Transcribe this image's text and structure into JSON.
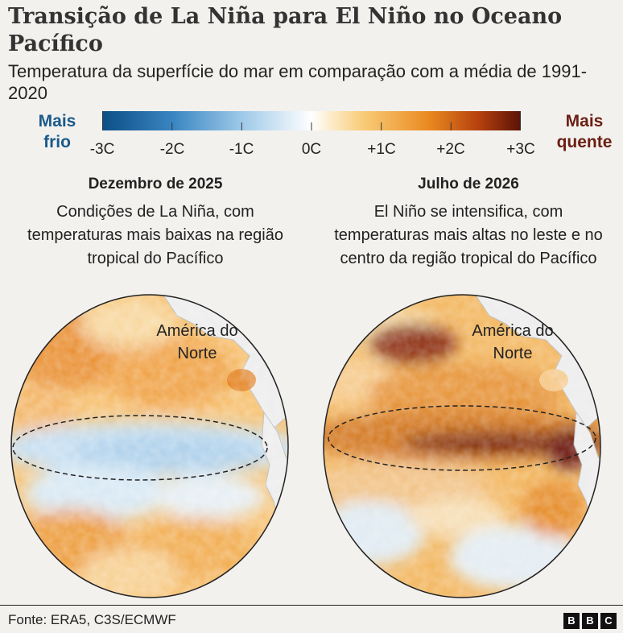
{
  "header": {
    "title": "Transição de La Niña para El Niño no Oceano Pacífico",
    "subtitle": "Temperatura da superfície do mar em comparação com a média de 1991-2020"
  },
  "scale": {
    "left_label": "Mais frio",
    "right_label": "Mais quente",
    "ticks": [
      "-3C",
      "-2C",
      "-1C",
      "0C",
      "+1C",
      "+2C",
      "+3C"
    ],
    "min": -3,
    "max": 3,
    "colors": {
      "cold_deep": "#0b4f86",
      "cold_mid": "#5fa3d6",
      "cold_light": "#c9e1f1",
      "neutral": "#ffffff",
      "warm_light": "#f8c168",
      "warm_mid": "#e07a16",
      "warm_deep": "#6b1608"
    }
  },
  "maps": [
    {
      "title": "Dezembro de 2025",
      "description": "Condições de La Niña, com temperaturas mais baixas na região tropical do Pacífico",
      "region_label": "América do Norte",
      "tropical_anomaly": "cold"
    },
    {
      "title": "Julho de 2026",
      "description": "El Niño se intensifica, com temperaturas mais altas no leste e no centro da região tropical do Pacífico",
      "region_label": "América do Norte",
      "tropical_anomaly": "warm"
    }
  ],
  "footer": {
    "source": "Fonte: ERA5, C3S/ECMWF",
    "logo": [
      "B",
      "B",
      "C"
    ]
  }
}
